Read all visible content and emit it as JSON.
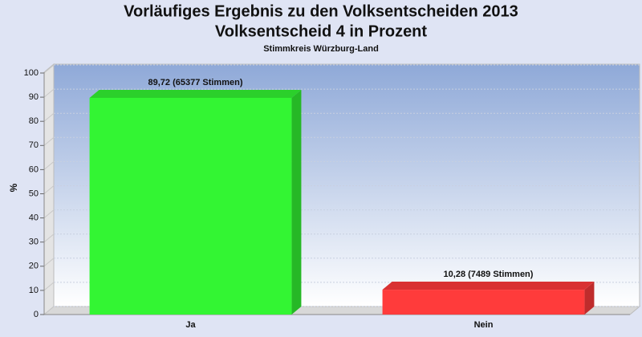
{
  "chart_data": {
    "type": "bar3d",
    "title": "Vorläufiges Ergebnis zu den Volksentscheiden 2013",
    "subtitle": "Volksentscheid 4 in Prozent",
    "caption": "Stimmkreis Würzburg-Land",
    "y_label": "%",
    "categories": [
      "Ja",
      "Nein"
    ],
    "values": [
      89.72,
      10.28
    ],
    "value_labels": [
      "89,72 (65377 Stimmen)",
      "10,28 (7489 Stimmen)"
    ],
    "colors": [
      "#33f533",
      "#ff3b3b"
    ],
    "ylim": [
      0,
      100
    ],
    "yticks": [
      0,
      10,
      20,
      30,
      40,
      50,
      60,
      70,
      80,
      90,
      100
    ],
    "grid": true
  }
}
